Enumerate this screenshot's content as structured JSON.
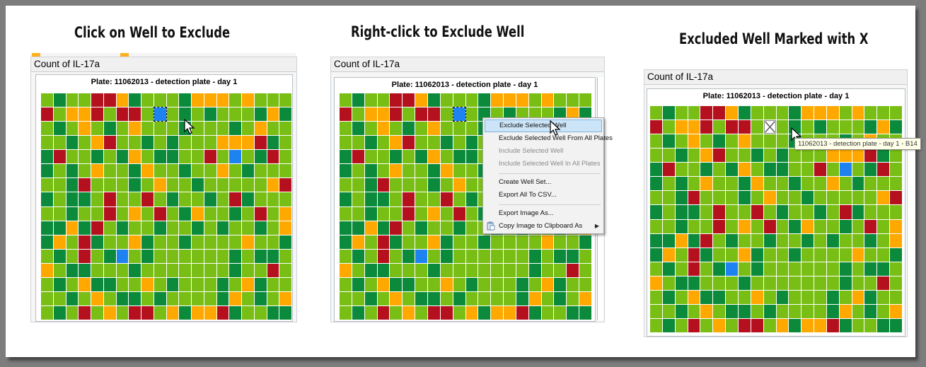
{
  "captions": {
    "step1": "Click on Well to Exclude",
    "step2": "Right-click to Exclude Well",
    "step3": "Excluded Well Marked with X"
  },
  "panels": [
    {
      "title": "Count of IL-17a",
      "plate_title": "Plate: 11062013 - detection plate - day 1"
    },
    {
      "title": "Count of IL-17a",
      "plate_title": "Plate: 11062013 - detection plate - day 1"
    },
    {
      "title": "Count of IL-17a",
      "plate_title": "Plate: 11062013 - detection plate - day 1"
    }
  ],
  "context_menu": {
    "items": [
      {
        "label": "Exclude Selected Well",
        "highlighted": true
      },
      {
        "label": "Exclude Selected Well From All Plates"
      },
      {
        "label": "Include Selected Well",
        "disabled": true
      },
      {
        "label": "Include Selected Well In All Plates",
        "disabled": true
      },
      {
        "label": "Create Well Set..."
      },
      {
        "label": "Export All To CSV..."
      },
      {
        "label": "Export Image As..."
      },
      {
        "label": "Copy Image to Clipboard As",
        "submenu": true,
        "icon": "clipboard-icon"
      }
    ]
  },
  "tooltip": "11062013 - detection plate - day 1 - B14",
  "well_colors": {
    "G": "#78be14",
    "D": "#0b8a3c",
    "O": "#ffa800",
    "R": "#b4101e",
    "B": "#1e82f0"
  },
  "plate_rows": [
    "GDGGRRODGGGDOOOGOGGG",
    "RGOORGRRGBGDGDGGGDOD",
    "GDGOGDGOGGGDGGGDGOGG",
    "GGDGORGGDGDGGGOOORDG",
    "DRGGDGDOGDDGGRGBGDRG",
    "DGDGOGGDOGGDGGOGDGGG",
    "GGDRGGGDGOGGDGGGGGOR",
    "DGDDGRGGRGDGGDGRDGGG",
    "GGDGGRGOGRGDOGGDGRGO",
    "DDODRGDGGDGGDGDGGDGO",
    "DOGRDGGODGGDGGGGOGGD",
    "GDGRGDBGDGGGGGGDGDDG",
    "OGDDGGGDGGGGGGGDGGRG",
    "GDGODDGGOGDGGGDGODGG",
    "GGDGOGDDGDGGGGDOGDGO",
    "GDGRGOGRRGODOORDGGDD"
  ],
  "selected_well": {
    "row": 1,
    "col": 9
  }
}
